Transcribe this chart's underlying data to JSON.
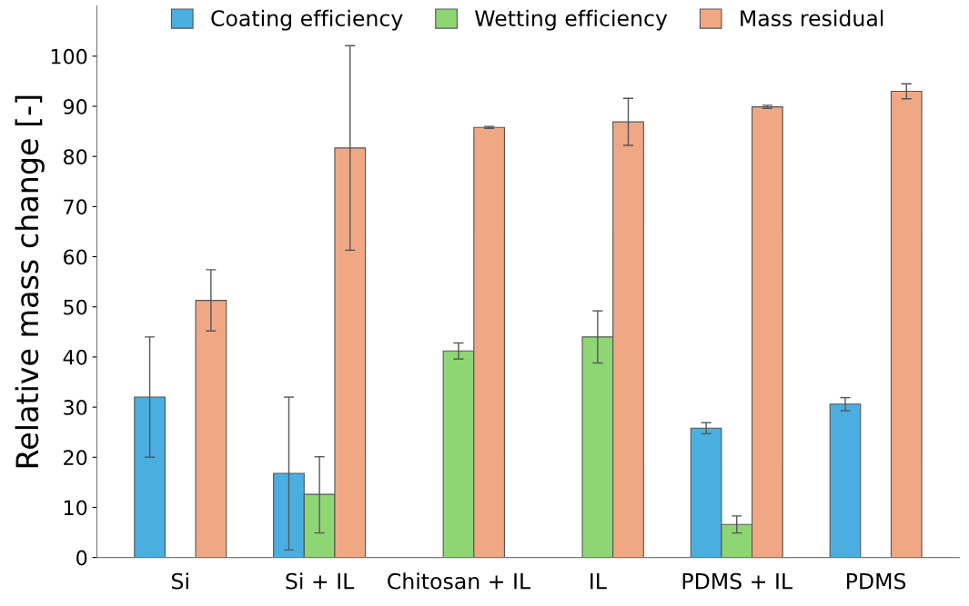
{
  "chart_data": {
    "type": "bar",
    "ylabel": "Relative mass change [-]",
    "categories": [
      "Si",
      "Si + IL",
      "Chitosan + IL",
      "IL",
      "PDMS + IL",
      "PDMS"
    ],
    "series": [
      {
        "name": "Coating efficiency",
        "color": "#4aafe0",
        "values": [
          32,
          16.8,
          null,
          null,
          25.8,
          30.6
        ],
        "errors": [
          [
            20,
            44
          ],
          [
            1.5,
            32
          ],
          null,
          null,
          [
            24.7,
            26.9
          ],
          [
            29.3,
            31.9
          ]
        ]
      },
      {
        "name": "Wetting efficiency",
        "color": "#8ed673",
        "values": [
          null,
          12.6,
          41.2,
          44,
          6.6,
          null
        ],
        "errors": [
          null,
          [
            4.9,
            20.1
          ],
          [
            39.6,
            42.8
          ],
          [
            38.8,
            49.2
          ],
          [
            4.9,
            8.3
          ],
          null
        ]
      },
      {
        "name": "Mass residual",
        "color": "#f0a884",
        "values": [
          51.3,
          81.7,
          85.8,
          86.9,
          89.9,
          93
        ],
        "errors": [
          [
            45.2,
            57.4
          ],
          [
            61.3,
            102.1
          ],
          [
            85.6,
            86
          ],
          [
            82.2,
            91.6
          ],
          [
            89.6,
            90.2
          ],
          [
            91.5,
            94.5
          ]
        ]
      }
    ],
    "ylim": [
      0,
      110
    ],
    "yticks": [
      0,
      10,
      20,
      30,
      40,
      50,
      60,
      70,
      80,
      90,
      100
    ],
    "grid": false,
    "legend": "top"
  }
}
